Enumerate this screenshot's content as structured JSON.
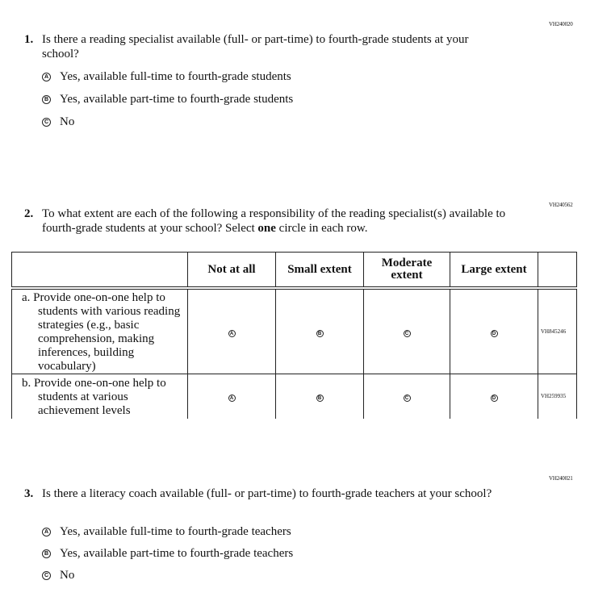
{
  "q1": {
    "code": "VH240020",
    "number": "1.",
    "text": "Is there a reading specialist available (full- or part-time) to fourth-grade students at your school?",
    "options": [
      {
        "letter": "A",
        "label": "Yes, available full-time to fourth-grade students"
      },
      {
        "letter": "B",
        "label": "Yes, available part-time to fourth-grade students"
      },
      {
        "letter": "C",
        "label": "No"
      }
    ]
  },
  "q2": {
    "code": "VH240562",
    "number": "2.",
    "text_before": "To what extent are each of the following a responsibility of the reading specialist(s) available to fourth-grade students at your school? Select ",
    "text_bold": "one",
    "text_after": " circle in each row.",
    "columns": [
      "Not at all",
      "Small extent",
      "Moderate extent",
      "Large extent"
    ],
    "letters": [
      "A",
      "B",
      "C",
      "D"
    ],
    "rows": [
      {
        "label": "a. Provide one-on-one help to students with various reading strategies (e.g., basic comprehension, making inferences, building vocabulary)",
        "code": "VH845246"
      },
      {
        "label": "b. Provide one-on-one help to students at various achievement levels",
        "code": "VH259935"
      }
    ]
  },
  "q3": {
    "code": "VH240021",
    "number": "3.",
    "text": "Is there a literacy coach available (full- or part-time) to fourth-grade teachers at your school?",
    "options": [
      {
        "letter": "A",
        "label": "Yes, available full-time to fourth-grade teachers"
      },
      {
        "letter": "B",
        "label": "Yes, available part-time to fourth-grade teachers"
      },
      {
        "letter": "C",
        "label": "No"
      }
    ]
  }
}
